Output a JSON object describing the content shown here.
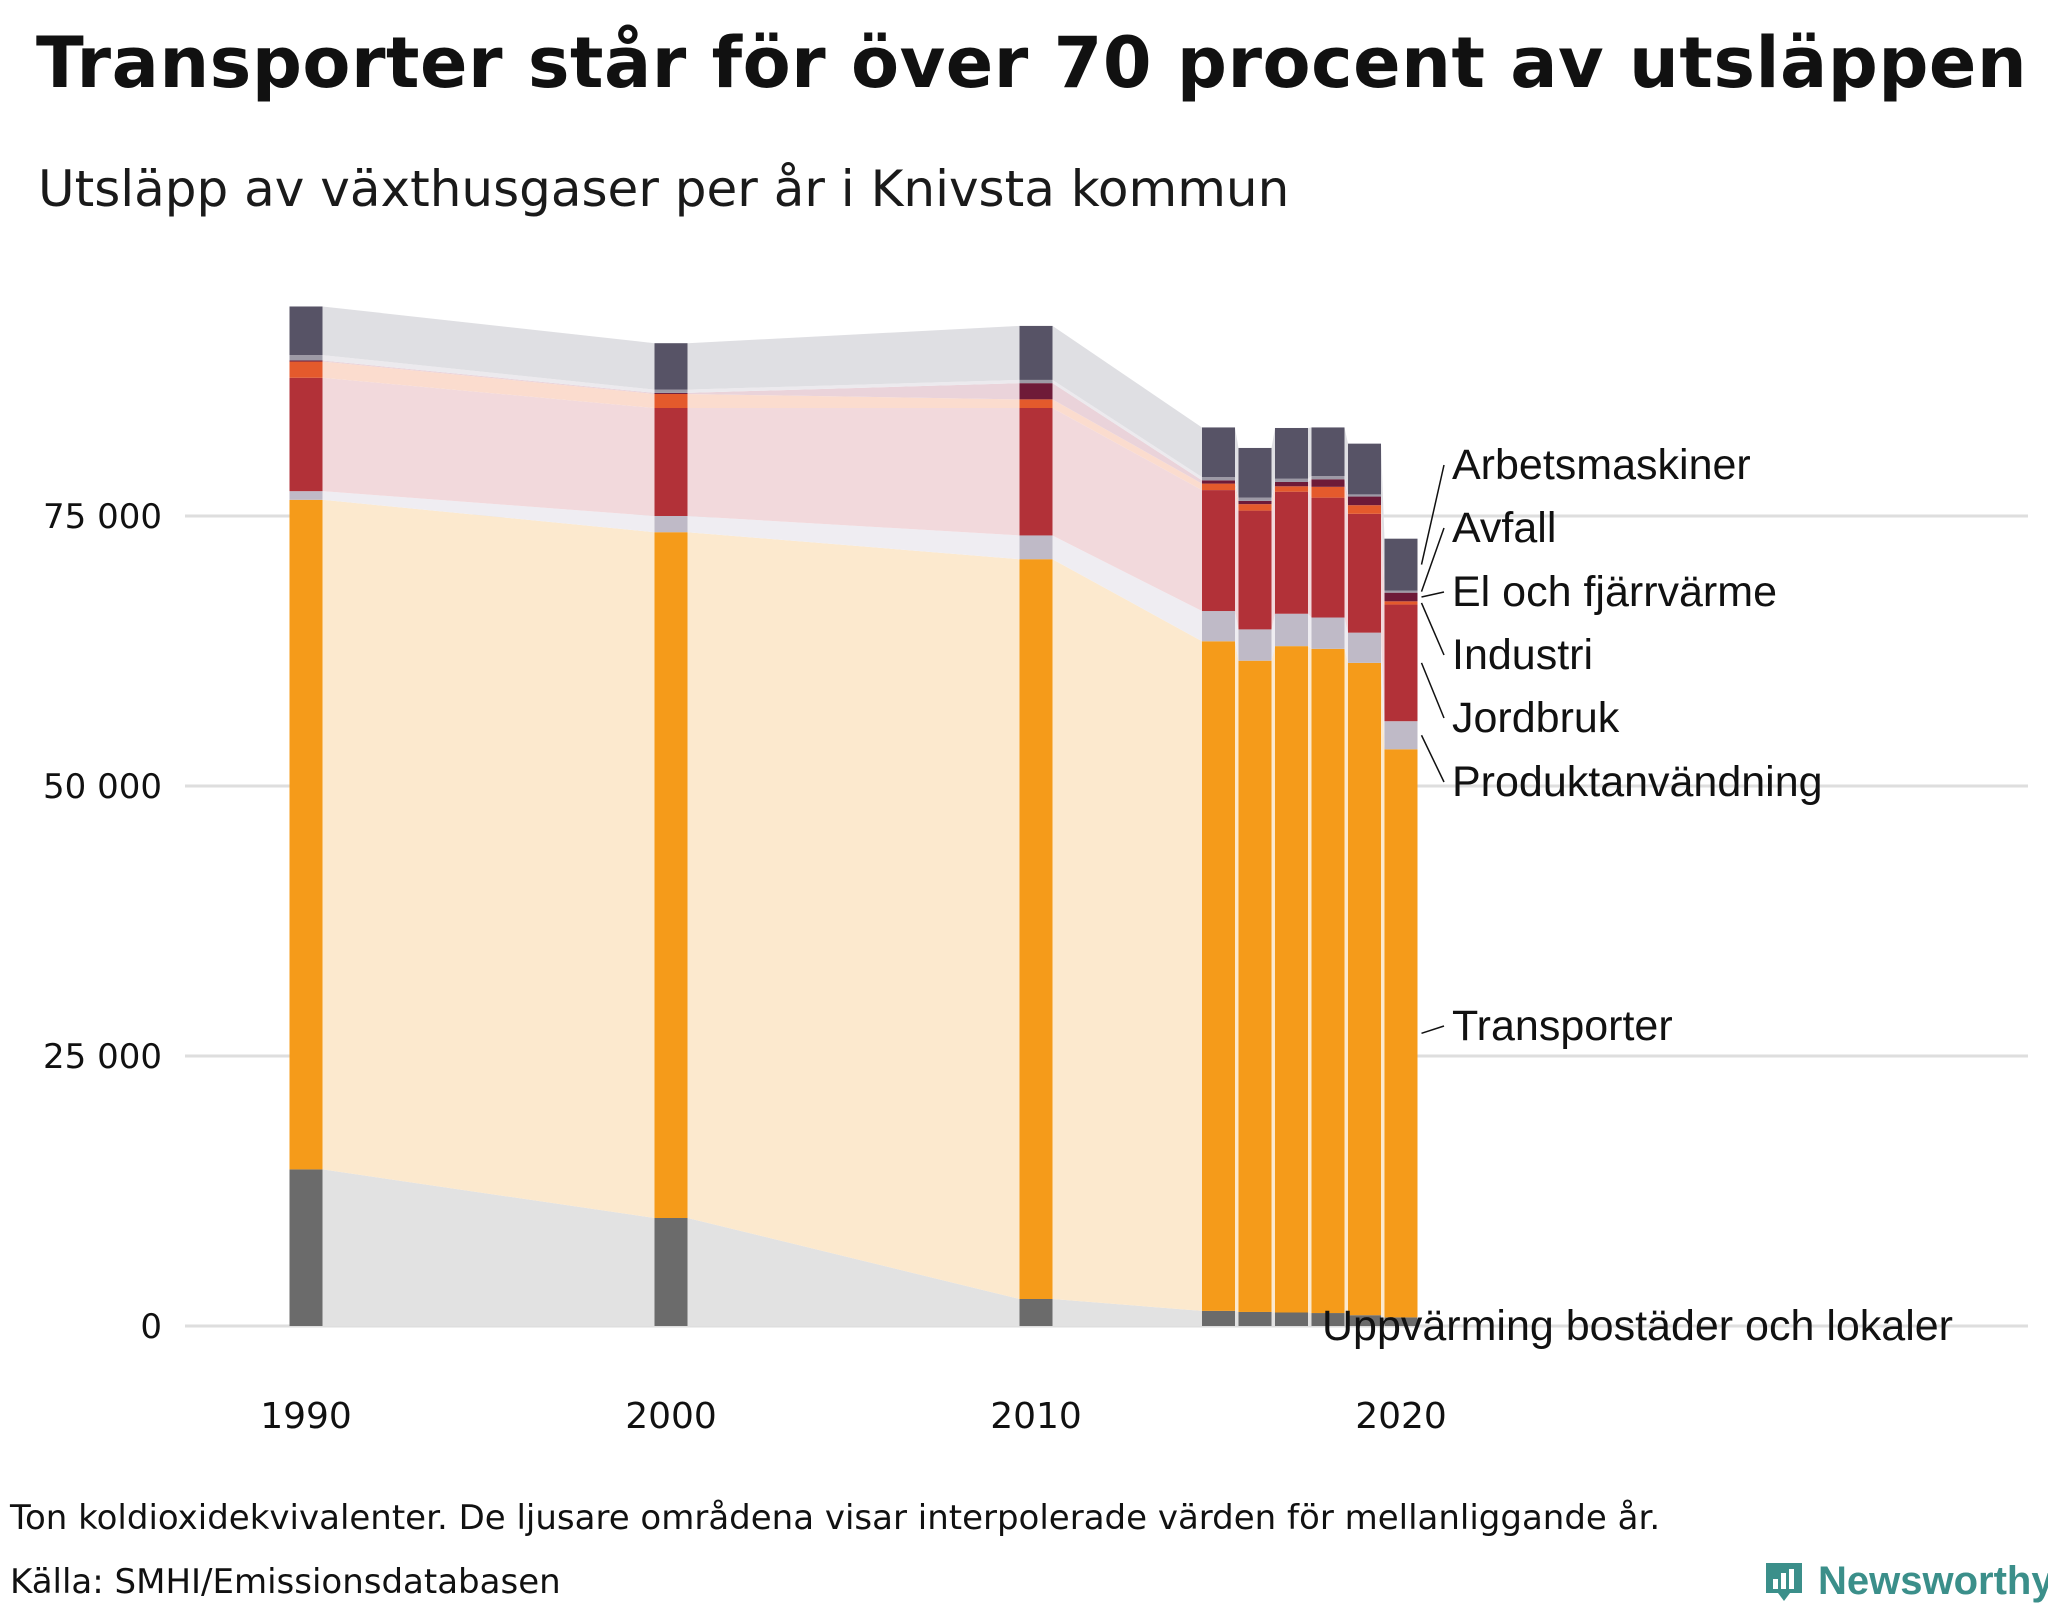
{
  "title": "Transporter står för över 70 procent av utsläppen",
  "subtitle": "Utsläpp av växthusgaser per år i Knivsta kommun",
  "note": "Ton koldioxidekvivalenter. De ljusare områdena visar interpolerade värden för mellanliggande år.",
  "source": "Källa: SMHI/Emissionsdatabasen",
  "logo": {
    "text": "Newsworthy",
    "icon": "bar-chart-badge-icon",
    "color": "#3b8f8a"
  },
  "chart_data": {
    "type": "bar",
    "stacked": true,
    "x": [
      1990,
      2000,
      2010,
      2015,
      2016,
      2017,
      2018,
      2019,
      2020
    ],
    "xticks": [
      "1990",
      "2000",
      "2010",
      "2020"
    ],
    "yticks": [
      "0",
      "25 000",
      "50 000",
      "75 000"
    ],
    "ytick_values": [
      0,
      25000,
      50000,
      75000
    ],
    "ylim": [
      0,
      95000
    ],
    "grid": "horizontal",
    "interpolated_areas": true,
    "legend": "direct labels right",
    "series": [
      {
        "name": "Uppvärming bostäder och lokaler",
        "color": "#6b6b6b",
        "area_color": "#e2e2e2",
        "values": [
          14500,
          10000,
          2500,
          1400,
          1300,
          1250,
          1200,
          1000,
          800
        ]
      },
      {
        "name": "Transporter",
        "color": "#f59b1a",
        "area_color": "#fce9ce",
        "values": [
          62000,
          63500,
          68500,
          62000,
          60300,
          61700,
          61500,
          60400,
          52600
        ]
      },
      {
        "name": "Produktanvändning",
        "color": "#bfbac7",
        "area_color": "#efedf2",
        "values": [
          800,
          1500,
          2200,
          2800,
          2900,
          3000,
          2900,
          2800,
          2600
        ]
      },
      {
        "name": "Jordbruk",
        "color": "#b23138",
        "area_color": "#f2d9dc",
        "values": [
          10500,
          10000,
          11800,
          11200,
          11000,
          11300,
          11100,
          11000,
          10800
        ]
      },
      {
        "name": "Industri",
        "color": "#e45a2c",
        "area_color": "#fbdcce",
        "values": [
          1500,
          1300,
          800,
          600,
          600,
          500,
          1000,
          800,
          300
        ]
      },
      {
        "name": "El och fjärrvärme",
        "color": "#6e1a38",
        "area_color": "#ead3da",
        "values": [
          100,
          100,
          1500,
          300,
          300,
          400,
          700,
          800,
          800
        ]
      },
      {
        "name": "Avfall",
        "color": "#9d9aa6",
        "area_color": "#eceaee",
        "values": [
          500,
          300,
          300,
          300,
          300,
          300,
          300,
          200,
          200
        ]
      },
      {
        "name": "Arbetsmaskiner",
        "color": "#575366",
        "area_color": "#dfdfe3",
        "values": [
          4500,
          4300,
          5000,
          4600,
          4600,
          4700,
          4500,
          4700,
          4800
        ]
      }
    ]
  }
}
